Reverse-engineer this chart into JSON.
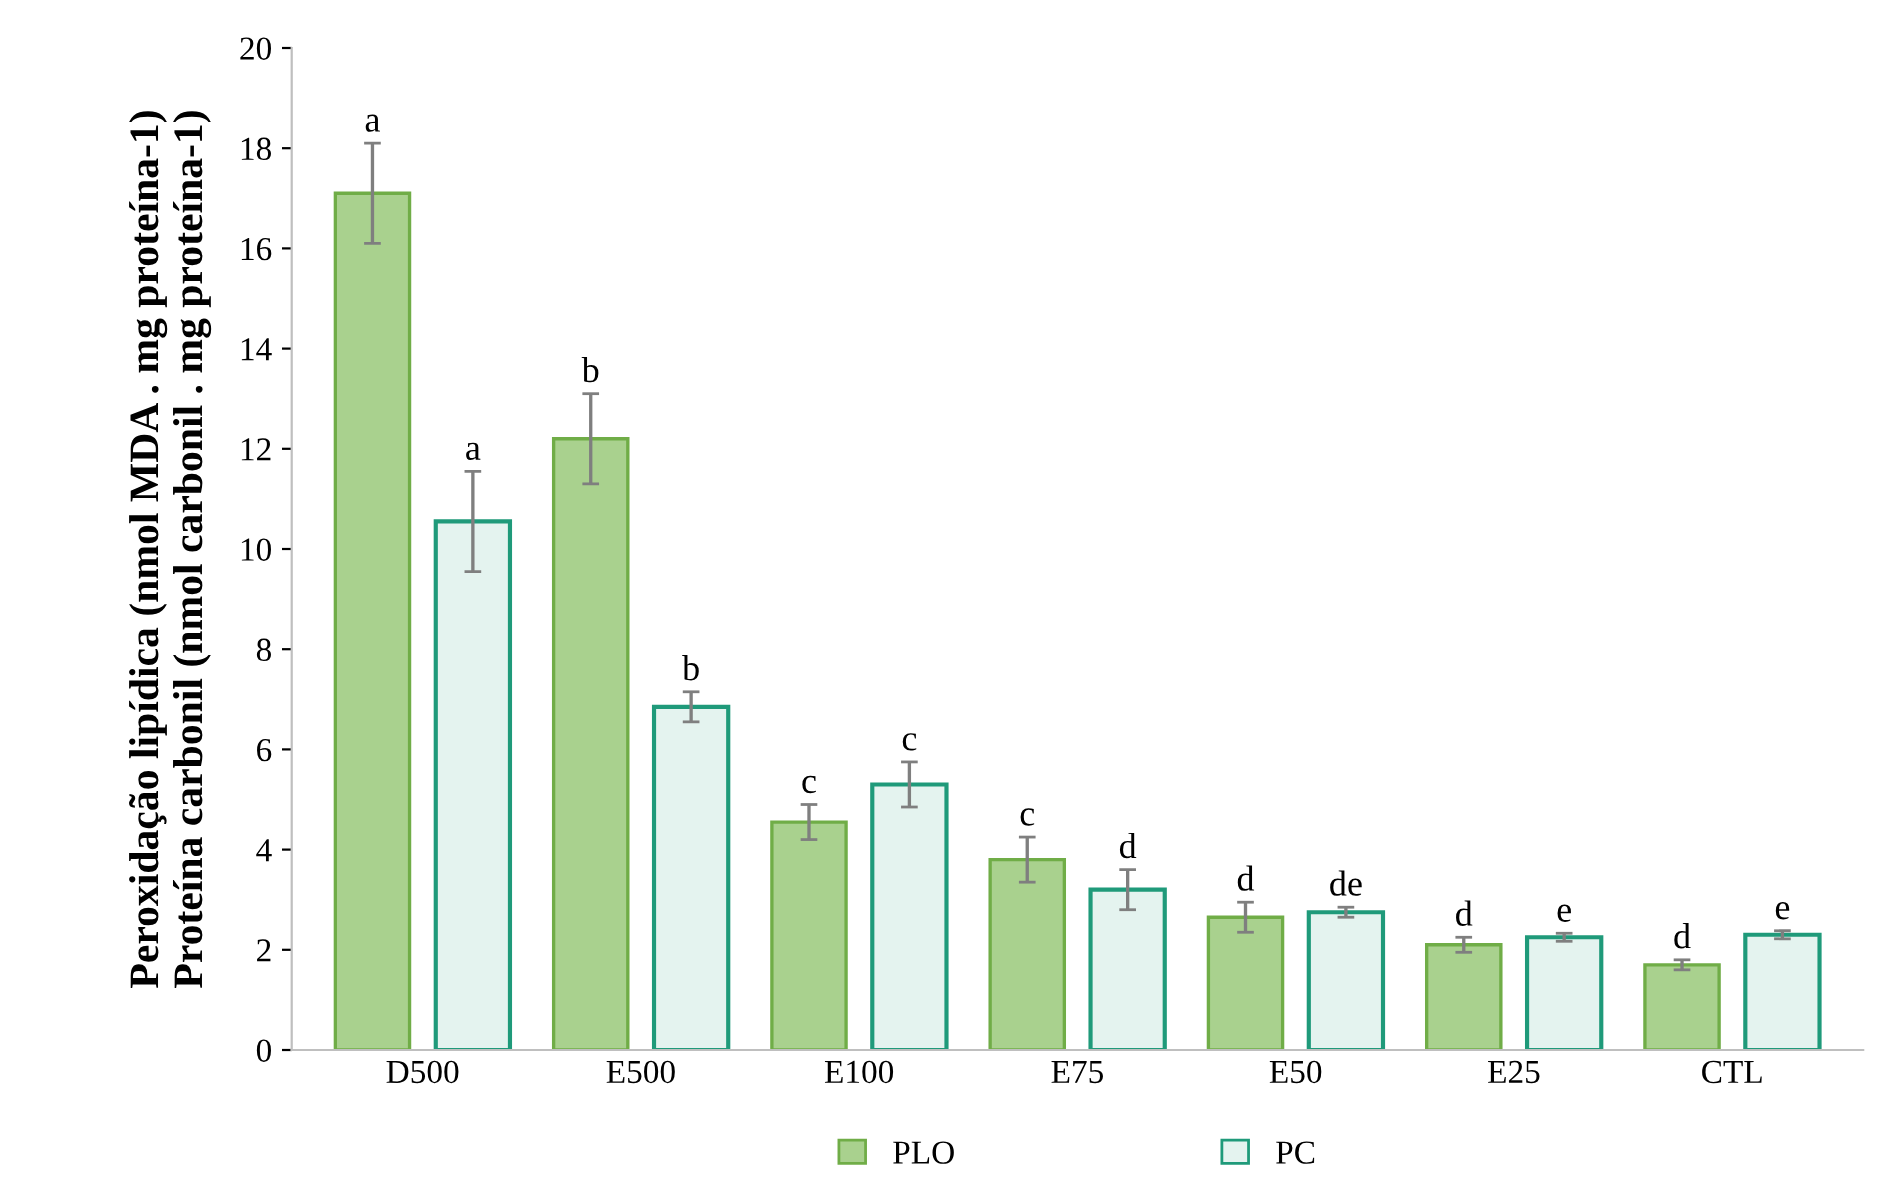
{
  "chart_data": {
    "type": "bar",
    "ylabel": "Peroxidação lipídica (nmol MDA . mg proteína-1)\nProteína carbonil (nmol carbonil . mg proteína-1)",
    "categories": [
      "D500",
      "E500",
      "E100",
      "E75",
      "E50",
      "E25",
      "CTL"
    ],
    "series": [
      {
        "name": "PLO",
        "color": "#a9d18e",
        "values": [
          17.1,
          12.2,
          4.55,
          3.8,
          2.65,
          2.1,
          1.7
        ],
        "errors": [
          1.0,
          0.9,
          0.35,
          0.45,
          0.3,
          0.15,
          0.1
        ],
        "value_labels": [
          "a",
          "b",
          "c",
          "c",
          "d",
          "d",
          "d"
        ]
      },
      {
        "name": "PC",
        "color": "#1f9a7a",
        "values": [
          10.55,
          6.85,
          5.3,
          3.2,
          2.75,
          2.25,
          2.3
        ],
        "errors": [
          1.0,
          0.3,
          0.45,
          0.4,
          0.1,
          0.08,
          0.08
        ],
        "value_labels": [
          "a",
          "b",
          "c",
          "d",
          "de",
          "e",
          "e"
        ]
      }
    ],
    "ylim": [
      0,
      20
    ],
    "yticks": [
      0,
      2,
      4,
      6,
      8,
      10,
      12,
      14,
      16,
      18,
      20
    ],
    "legend": "bottom"
  }
}
